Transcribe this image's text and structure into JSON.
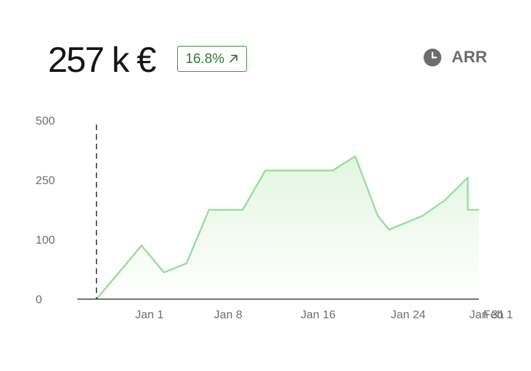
{
  "kpi": {
    "value": "257 k €",
    "change": "16.8%",
    "metric": "ARR"
  },
  "icons": {
    "change": "arrow-up-right-icon",
    "metric": "clock-icon"
  },
  "colors": {
    "line": "#9adf9b",
    "area_top": "#e3f5e1",
    "area_bottom": "#ffffff",
    "badge": "#3e8a3c",
    "axis": "#3b3f48"
  },
  "chart_data": {
    "type": "area",
    "x_ticks": [
      "Jan 1",
      "Jan 8",
      "Jan 16",
      "Jan 24",
      "Jan 31",
      "Feb 1"
    ],
    "y_ticks": [
      "0",
      "100",
      "250",
      "500"
    ],
    "ylim": [
      0,
      500
    ],
    "series": [
      {
        "x": [
          "Dec 29",
          "Jan 2",
          "Jan 4",
          "Jan 6",
          "Jan 8",
          "Jan 11",
          "Jan 13",
          "Jan 16",
          "Jan 19",
          "Jan 21",
          "Jan 23",
          "Jan 24",
          "Jan 27",
          "Jan 29",
          "Jan 31",
          "Jan 31",
          "Feb 1"
        ],
        "values": [
          0,
          90,
          45,
          60,
          175,
          175,
          290,
          290,
          290,
          350,
          160,
          125,
          160,
          200,
          260,
          175,
          175
        ]
      }
    ],
    "marker_x": "Dec 29",
    "xlabel": "",
    "ylabel": "",
    "title": ""
  }
}
